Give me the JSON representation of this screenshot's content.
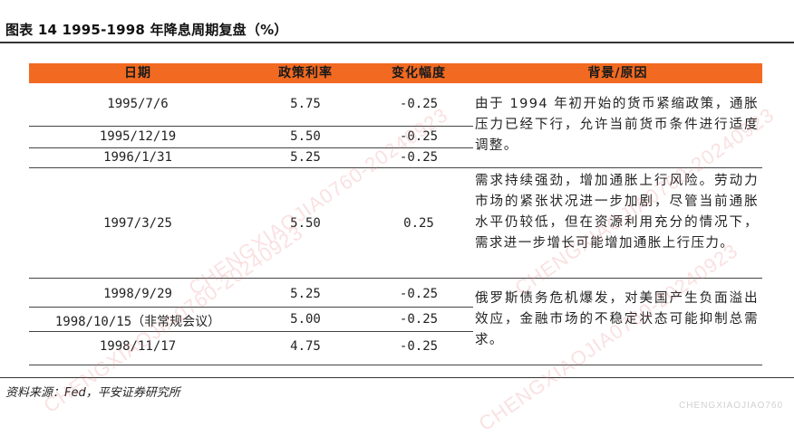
{
  "figure": {
    "title": "图表 14   1995-1998 年降息周期复盘（%）",
    "source": "资料来源：Fed，平安证券研究所"
  },
  "table": {
    "headers": [
      "日期",
      "政策利率",
      "变化幅度",
      "背景/原因"
    ],
    "rows": [
      {
        "date": "1995/7/6",
        "rate": "5.75",
        "change": "-0.25"
      },
      {
        "date": "1995/12/19",
        "rate": "5.50",
        "change": "-0.25"
      },
      {
        "date": "1996/1/31",
        "rate": "5.25",
        "change": "-0.25"
      },
      {
        "date": "1997/3/25",
        "rate": "5.50",
        "change": "0.25"
      },
      {
        "date": "1998/9/29",
        "rate": "5.25",
        "change": "-0.25"
      },
      {
        "date": "1998/10/15（非常规会议）",
        "rate": "5.00",
        "change": "-0.25"
      },
      {
        "date": "1998/11/17",
        "rate": "4.75",
        "change": "-0.25"
      }
    ],
    "reasons": [
      "由于 1994 年初开始的货币紧缩政策，通胀压力已经下行，允许当前货币条件进行适度调整。",
      "需求持续强劲，增加通胀上行风险。劳动力市场的紧张状况进一步加剧，尽管当前通胀水平仍较低，但在资源利用充分的情况下，需求进一步增长可能增加通胀上行压力。",
      "俄罗斯债务危机爆发，对美国产生负面溢出效应，金融市场的不稳定状态可能抑制总需求。"
    ]
  },
  "watermark": {
    "text": "CHENGXIAOJIA0760-20240923",
    "corner": "CHENGXIAOJIAO760"
  }
}
